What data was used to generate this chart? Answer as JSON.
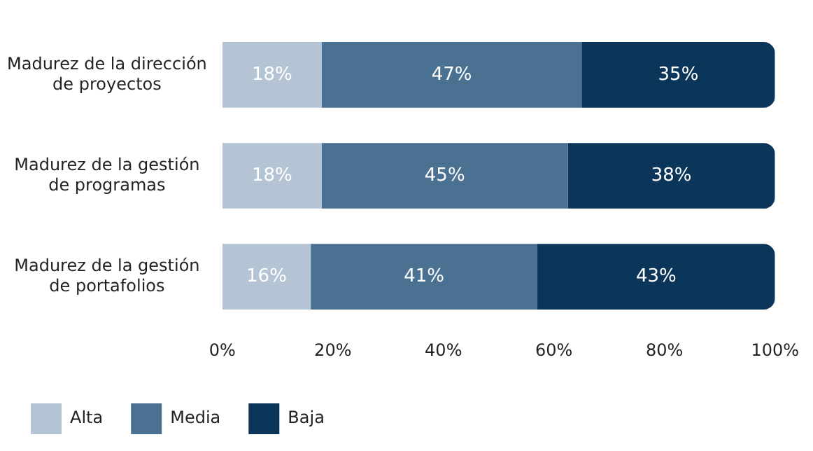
{
  "chart_data": {
    "type": "bar",
    "orientation": "horizontal",
    "stacked": true,
    "categories": [
      "Madurez de la dirección de proyectos",
      "Madurez de la gestión de programas",
      "Madurez de la gestión de portafolios"
    ],
    "series": [
      {
        "name": "Alta",
        "color": "#b4c4d4",
        "values": [
          18,
          18,
          16
        ],
        "value_labels": [
          "18%",
          "18%",
          "16%"
        ]
      },
      {
        "name": "Media",
        "color": "#4a7192",
        "values": [
          47,
          44.5,
          41
        ],
        "value_labels": [
          "47%",
          "45%",
          "41%"
        ]
      },
      {
        "name": "Baja",
        "color": "#0b365a",
        "values": [
          35,
          37.5,
          43
        ],
        "value_labels": [
          "35%",
          "38%",
          "43%"
        ]
      }
    ],
    "xlim": [
      0,
      100
    ],
    "xticks": [
      {
        "value": 0,
        "label": "0%"
      },
      {
        "value": 20,
        "label": "20%"
      },
      {
        "value": 40,
        "label": "40%"
      },
      {
        "value": 60,
        "label": "60%"
      },
      {
        "value": 80,
        "label": "80%"
      },
      {
        "value": 100,
        "label": "100%"
      }
    ],
    "grid": false,
    "legend": "bottom left"
  }
}
